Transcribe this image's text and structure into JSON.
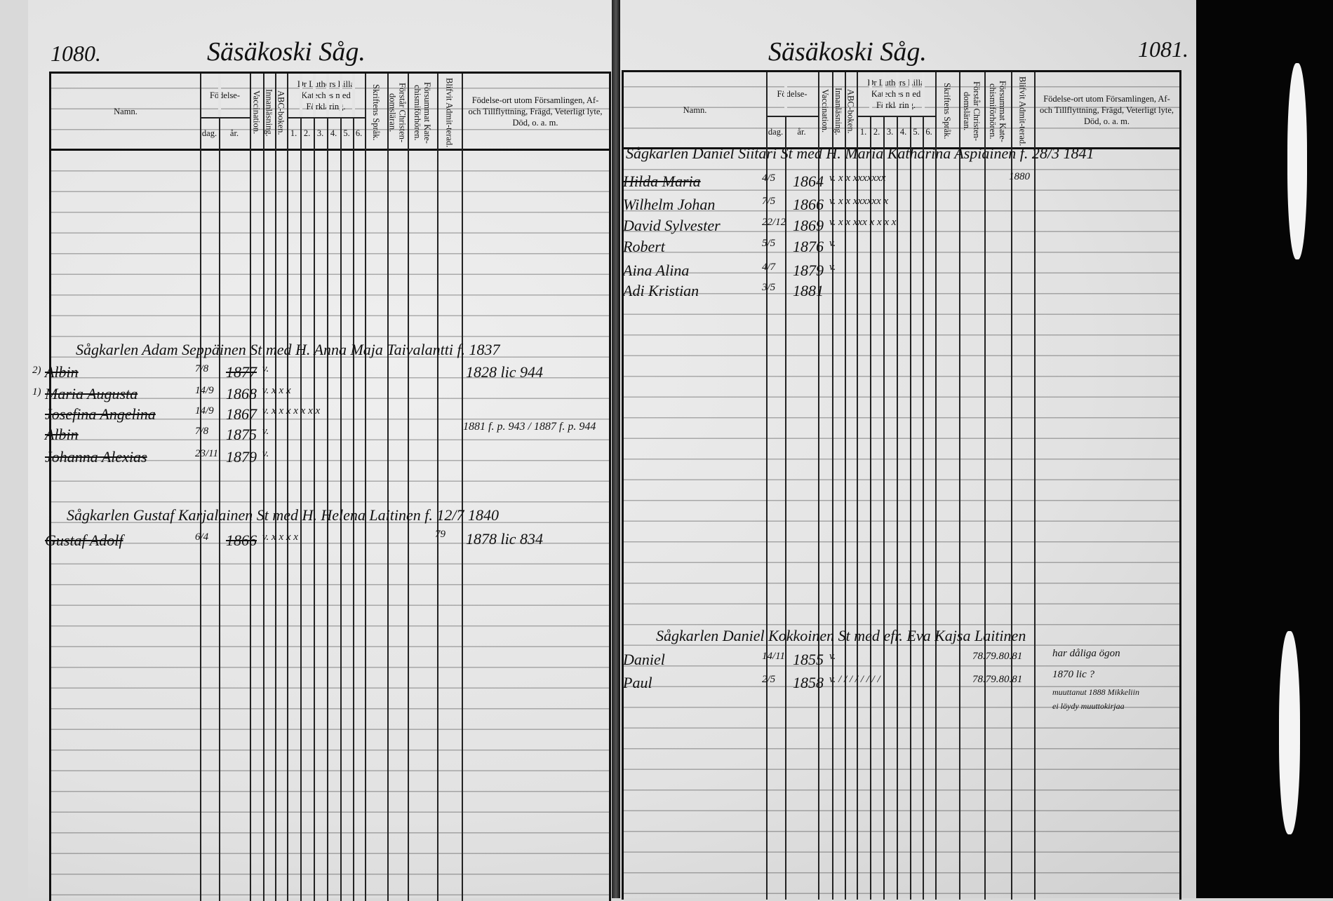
{
  "left_page": {
    "page_number": "1080.",
    "place_title": "Säsäkoski Såg.",
    "families": [
      {
        "head": "Sågkarlen Adam Seppäinen St med H. Anna Maja Taivalantti f. 1837",
        "note": "1828 lic 944",
        "members": [
          {
            "mark": "2)",
            "name": "Albin",
            "dag": "7/8",
            "ar": "1877",
            "marks": "v.",
            "struck": true
          },
          {
            "mark": "1)",
            "name": "Maria Augusta",
            "dag": "14/9",
            "ar": "1868",
            "marks": "v. x x x",
            "struck": true
          },
          {
            "name": "Josefina Angelina",
            "dag": "14/9",
            "ar": "1867",
            "marks": "v. x x x x x x x",
            "struck": true
          },
          {
            "name": "Albin",
            "dag": "7/8",
            "ar": "1875",
            "marks": "v.",
            "struck": true
          },
          {
            "name": "Johanna Alexias",
            "dag": "23/11",
            "ar": "1879",
            "marks": "v.",
            "struck": true
          }
        ],
        "side_note": "1881 f. p. 943 / 1887 f. p. 944"
      },
      {
        "head": "Sågkarlen Gustaf Karjalainen St med H. Helena Laitinen f. 12/7 1840",
        "note": "1878 lic 834",
        "extra": "79",
        "members": [
          {
            "name": "Gustaf Adolf",
            "dag": "6/4",
            "ar": "1866",
            "marks": "v. x x x x",
            "struck": true
          }
        ]
      }
    ]
  },
  "right_page": {
    "page_number": "1081.",
    "place_title": "Säsäkoski Såg.",
    "families": [
      {
        "head": "Sågkarlen Daniel Siitari St med H. Maria Katharina Aspiainen f. 28/3 1841",
        "extra": "1880",
        "members": [
          {
            "name": "Hilda Maria",
            "dag": "4/5",
            "ar": "1864",
            "marks": "v. x x xxxxxxx",
            "struck": true
          },
          {
            "name": "Wilhelm Johan",
            "dag": "7/5",
            "ar": "1866",
            "marks": "v. x x xxxxxx x"
          },
          {
            "name": "David Sylvester",
            "dag": "22/12",
            "ar": "1869",
            "marks": "v. x x xxx x x x x"
          },
          {
            "name": "Robert",
            "dag": "5/5",
            "ar": "1876",
            "marks": "v."
          },
          {
            "name": "Aina Alina",
            "dag": "4/7",
            "ar": "1879",
            "marks": "v."
          },
          {
            "name": "Adi Kristian",
            "dag": "3/5",
            "ar": "1881",
            "marks": ""
          }
        ]
      },
      {
        "head": "Sågkarlen Daniel Kokkoinen St med efr. Eva Kajsa Laitinen",
        "members": [
          {
            "name": "Daniel",
            "dag": "14/11",
            "ar": "1855",
            "marks": "v.",
            "years": "78.79.80.81"
          },
          {
            "name": "Paul",
            "dag": "2/5",
            "ar": "1858",
            "marks": "v. / / / / / / / /",
            "years": "78.79.80.81"
          }
        ],
        "notes": [
          "har dåliga ögon",
          "1870 lic ?",
          "muuttanut 1888 Mikkeliin",
          "ei löydy muuttokirjaa"
        ]
      }
    ]
  },
  "columns": {
    "namn": "Namn.",
    "fodelse": "Födelse-",
    "dag": "dag.",
    "ar": "år.",
    "vaccination": "Vaccination.",
    "innanlasning": "Innanläsning.",
    "abc": "ABC-boken.",
    "katekes": "Dr Luthers Lilla Kateches med Förklaring.",
    "katekes_parts": [
      "1.",
      "2.",
      "3.",
      "4.",
      "5.",
      "6."
    ],
    "skriftens": "Skriftens Språk.",
    "forstar": "Förstår Christen-domsläran.",
    "forsummat": "Försummat Kate-chismiförhören.",
    "blifvit": "Blifvit Admit-terad.",
    "fodelseort": "Födelse-ort utom Församlingen, Af- och Tillflyttning, Frägd, Veterligt lyte, Död, o. a. m."
  }
}
